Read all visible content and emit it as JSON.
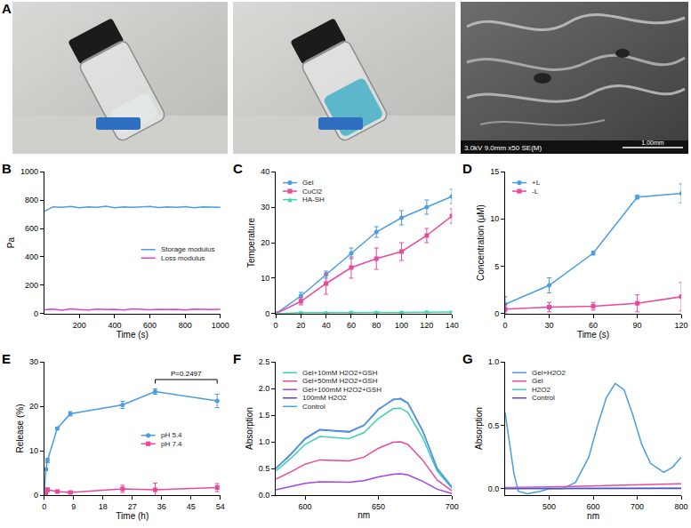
{
  "photos": {
    "panel": "A",
    "sem_label": "3.0kV 9.0mm x50 SE(M)",
    "scale_bar": "1.00mm"
  },
  "chart_data": [
    {
      "panel": "B",
      "type": "line",
      "x_label": "Time (s)",
      "y_label": "Pa",
      "x": [
        0,
        50,
        100,
        150,
        200,
        250,
        300,
        350,
        400,
        450,
        500,
        550,
        600,
        650,
        700,
        750,
        800,
        850,
        900,
        950,
        1000
      ],
      "series": [
        {
          "name": "Storage modulus",
          "color": "#4a9de0",
          "values": [
            720,
            752,
            748,
            755,
            746,
            751,
            749,
            756,
            745,
            752,
            748,
            750,
            754,
            747,
            751,
            749,
            753,
            746,
            752,
            750,
            748
          ]
        },
        {
          "name": "Loss modulus",
          "color": "#e040d0",
          "values": [
            28,
            32,
            25,
            35,
            30,
            27,
            33,
            29,
            31,
            26,
            34,
            30,
            28,
            32,
            29,
            31,
            27,
            33,
            30,
            29,
            31
          ]
        }
      ],
      "xlim": [
        0,
        1000
      ],
      "xticks": [
        200,
        400,
        600,
        800,
        1000
      ],
      "ylim": [
        0,
        1000
      ],
      "yticks": [
        0,
        200,
        400,
        600,
        800,
        1000
      ],
      "grid": false,
      "legend": "center right"
    },
    {
      "panel": "C",
      "type": "line",
      "y_label": "Temperature",
      "x": [
        0,
        20,
        40,
        60,
        80,
        100,
        120,
        140
      ],
      "series": [
        {
          "name": "Gel",
          "color": "#4a9de0",
          "marker": "circle",
          "values": [
            0,
            5,
            11,
            17,
            23,
            27,
            30,
            33
          ],
          "errors": [
            0.5,
            1,
            1,
            1.5,
            1.5,
            2,
            2,
            2
          ]
        },
        {
          "name": "CuCl2",
          "color": "#e8499e",
          "marker": "square",
          "values": [
            0,
            3.5,
            8.5,
            13,
            15.5,
            17.5,
            22,
            27.5
          ],
          "errors": [
            0.5,
            1,
            3,
            3,
            3,
            2.5,
            2,
            2
          ]
        },
        {
          "name": "HA-SH",
          "color": "#3ed1b0",
          "marker": "triangle-up",
          "values": [
            0,
            0.3,
            0.3,
            0.4,
            0.4,
            0.4,
            0.5,
            0.5
          ],
          "errors": [
            0.2,
            0.2,
            0.2,
            0.2,
            0.2,
            0.2,
            0.2,
            0.2
          ]
        }
      ],
      "xlim": [
        0,
        140
      ],
      "xticks": [
        0,
        20,
        40,
        60,
        80,
        100,
        120,
        140
      ],
      "ylim": [
        0,
        40
      ],
      "yticks": [
        0,
        10,
        20,
        30,
        40
      ],
      "grid": false,
      "legend": "upper left"
    },
    {
      "panel": "D",
      "type": "line",
      "x_label": "Time (s)",
      "y_label": "Concentration (μM)",
      "x": [
        0,
        30,
        60,
        90,
        120
      ],
      "series": [
        {
          "name": "+L",
          "color": "#4a9de0",
          "marker": "circle",
          "values": [
            1,
            3,
            6.4,
            12.3,
            12.7
          ],
          "errors": [
            0.8,
            0.8,
            0.2,
            0.2,
            1
          ]
        },
        {
          "name": "-L",
          "color": "#e8499e",
          "marker": "square",
          "values": [
            0.5,
            0.7,
            0.8,
            1.1,
            1.8
          ],
          "errors": [
            0.5,
            0.5,
            0.4,
            0.9,
            1.5
          ]
        }
      ],
      "xlim": [
        0,
        120
      ],
      "xticks": [
        0,
        30,
        60,
        90,
        120
      ],
      "ylim": [
        0,
        15
      ],
      "yticks": [
        0,
        5,
        10,
        15
      ],
      "grid": false,
      "legend": "upper left"
    },
    {
      "panel": "E",
      "type": "line",
      "x_label": "Time (h)",
      "y_label": "Release (%)",
      "x": [
        0,
        0.5,
        1,
        4,
        8,
        24,
        34,
        53
      ],
      "series": [
        {
          "name": "pH 5.4",
          "color": "#4a9de0",
          "marker": "circle",
          "values": [
            0,
            5.8,
            7.8,
            15,
            18.3,
            20.3,
            23.3,
            21.2
          ],
          "errors": [
            0,
            0.3,
            0.5,
            0.3,
            0.5,
            0.8,
            0.6,
            1.5
          ]
        },
        {
          "name": "pH 7.4",
          "color": "#e8499e",
          "marker": "square",
          "values": [
            0,
            0.3,
            1.2,
            0.8,
            0.6,
            1.4,
            1.2,
            1.7
          ],
          "errors": [
            0,
            0.5,
            0.4,
            0.3,
            0.3,
            0.8,
            1.5,
            0.9
          ]
        }
      ],
      "xlim": [
        0,
        54
      ],
      "xticks": [
        0,
        9,
        18,
        27,
        36,
        45,
        54
      ],
      "ylim": [
        0,
        30
      ],
      "yticks": [
        0,
        10,
        20,
        30
      ],
      "annotations": [
        {
          "text": "P=0.2497",
          "x": [
            34,
            53
          ],
          "y": 26
        }
      ],
      "grid": false,
      "legend": "center right"
    },
    {
      "panel": "F",
      "type": "line",
      "x_label": "nm",
      "y_label": "Absorption",
      "x": [
        580,
        590,
        600,
        610,
        620,
        630,
        640,
        650,
        660,
        665,
        670,
        680,
        690,
        700
      ],
      "series": [
        {
          "name": "Gel+10mM H2O2+GSH",
          "color": "#3ed1b0",
          "values": [
            0.45,
            0.68,
            0.95,
            1.1,
            1.08,
            1.06,
            1.17,
            1.44,
            1.62,
            1.63,
            1.55,
            1.08,
            0.45,
            0.13
          ]
        },
        {
          "name": "Gel+50mM H2O2+GSH",
          "color": "#e8499e",
          "values": [
            0.3,
            0.43,
            0.58,
            0.66,
            0.65,
            0.64,
            0.71,
            0.88,
            0.99,
            1.0,
            0.95,
            0.66,
            0.28,
            0.08
          ]
        },
        {
          "name": "Gel+100mM H2O2+GSH",
          "color": "#a344e8",
          "values": [
            0.1,
            0.16,
            0.22,
            0.25,
            0.25,
            0.24,
            0.27,
            0.34,
            0.39,
            0.4,
            0.38,
            0.26,
            0.11,
            0.03
          ]
        },
        {
          "name": "100mM H2O2",
          "color": "#5b3fd6",
          "values": [
            0.5,
            0.76,
            1.06,
            1.23,
            1.21,
            1.19,
            1.31,
            1.61,
            1.79,
            1.81,
            1.73,
            1.21,
            0.5,
            0.15
          ]
        },
        {
          "name": "Control",
          "color": "#4aa8e0",
          "values": [
            0.5,
            0.75,
            1.05,
            1.22,
            1.2,
            1.18,
            1.3,
            1.6,
            1.8,
            1.8,
            1.72,
            1.2,
            0.5,
            0.15
          ]
        }
      ],
      "xlim": [
        580,
        700
      ],
      "xticks": [
        600,
        650,
        700
      ],
      "ylim": [
        0,
        2.5
      ],
      "yticks": [
        {
          "value": 0,
          "label": "0.0"
        },
        0.5,
        {
          "value": 1,
          "label": "1.0"
        },
        1.5,
        {
          "value": 2,
          "label": "2.0"
        },
        2.5
      ],
      "grid": false,
      "legend": "upper left"
    },
    {
      "panel": "G",
      "type": "line",
      "x_label": "nm",
      "y_label": "Absorption",
      "x": [
        400,
        410,
        420,
        430,
        450,
        480,
        500,
        530,
        560,
        590,
        610,
        630,
        650,
        670,
        690,
        710,
        730,
        760,
        780,
        800
      ],
      "series": [
        {
          "name": "Gel+H2O2",
          "color": "#4a9de0",
          "values": [
            0.6,
            0.35,
            0.12,
            -0.02,
            -0.04,
            -0.02,
            0.0,
            0.0,
            0.05,
            0.25,
            0.5,
            0.72,
            0.83,
            0.78,
            0.58,
            0.35,
            0.2,
            0.13,
            0.17,
            0.25
          ]
        },
        {
          "name": "Gel",
          "color": "#e8499e",
          "values": [
            0.01,
            0.01,
            0.01,
            0.01,
            0.01,
            0.012,
            0.015,
            0.017,
            0.02,
            0.02,
            0.022,
            0.025,
            0.027,
            0.03,
            0.03,
            0.032,
            0.033,
            0.035,
            0.037,
            0.04
          ]
        },
        {
          "name": "H2O2",
          "color": "#3ed1b0",
          "values": [
            0.005,
            0.005,
            0.004,
            0.004,
            0.004,
            0.005,
            0.005,
            0.004,
            0.005,
            0.006,
            0.006,
            0.007,
            0.007,
            0.006,
            0.006,
            0.005,
            0.005,
            0.006,
            0.006,
            0.006
          ]
        },
        {
          "name": "Control",
          "color": "#6a40d8",
          "values": [
            0,
            0,
            0,
            0,
            0.001,
            0.001,
            0.001,
            0.001,
            0.002,
            0.002,
            0.002,
            0.002,
            0.002,
            0.002,
            0.002,
            0.002,
            0.002,
            0.002,
            0.002,
            0.002
          ]
        }
      ],
      "xlim": [
        400,
        800
      ],
      "xticks": [
        500,
        600,
        700,
        800
      ],
      "ylim": [
        -0.05,
        1.0
      ],
      "yticks": [
        {
          "value": 0,
          "label": "0.0"
        },
        0.5,
        {
          "value": 1,
          "label": "1.0"
        }
      ],
      "grid": false,
      "legend": "upper left"
    }
  ]
}
